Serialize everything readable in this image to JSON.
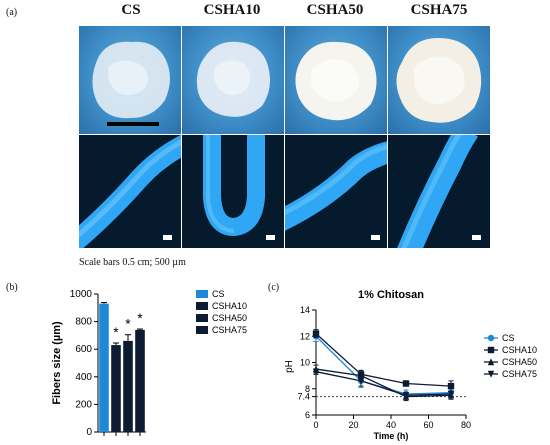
{
  "panel_a": {
    "label": "(a)",
    "columns": [
      "CS",
      "CSHA10",
      "CSHA50",
      "CSHA75"
    ],
    "caption": "Scale bars 0.5 cm; 500 µm"
  },
  "panel_b": {
    "label": "(b)"
  },
  "panel_c": {
    "label": "(c)"
  },
  "colors": {
    "cs": "#1e88d8",
    "dark": "#0d1c33",
    "fiber": "#2fa7f5"
  },
  "chart_data": [
    {
      "type": "bar",
      "categories": [
        "CS",
        "CSHA10",
        "CSHA50",
        "CSHA75"
      ],
      "values": [
        930,
        630,
        660,
        740
      ],
      "errors": [
        8,
        15,
        45,
        6
      ],
      "significance": [
        "",
        "*",
        "*",
        "*"
      ],
      "title": "",
      "xlabel": "",
      "ylabel": "Fibers size (µm)",
      "ylim": [
        0,
        1000
      ],
      "yticks": [
        0,
        200,
        400,
        600,
        800,
        1000
      ],
      "legend": [
        "CS",
        "CSHA10",
        "CSHA50",
        "CSHA75"
      ],
      "legend_position": "right"
    },
    {
      "type": "line",
      "title": "1% Chitosan",
      "xlabel": "Time (h)",
      "ylabel": "pH",
      "xlim": [
        0,
        80
      ],
      "ylim": [
        6,
        14
      ],
      "xticks": [
        0,
        20,
        40,
        60,
        80
      ],
      "yticks": [
        6,
        7.4,
        8,
        10,
        12,
        14
      ],
      "reference_line": 7.4,
      "x": [
        0,
        24,
        48,
        72
      ],
      "series": [
        {
          "name": "CS",
          "marker": "circle",
          "values": [
            12.0,
            8.6,
            7.6,
            7.7
          ],
          "errors": [
            0.4,
            0.5,
            0.3,
            0.3
          ]
        },
        {
          "name": "CSHA10",
          "marker": "square",
          "values": [
            12.2,
            9.1,
            8.4,
            8.2
          ],
          "errors": [
            0.3,
            0.3,
            0.2,
            0.4
          ]
        },
        {
          "name": "CSHA50",
          "marker": "triangle-up",
          "values": [
            9.5,
            9.0,
            7.4,
            7.5
          ],
          "errors": [
            0.3,
            0.4,
            0.3,
            0.3
          ]
        },
        {
          "name": "CSHA75",
          "marker": "triangle-down",
          "values": [
            9.3,
            8.6,
            7.5,
            7.6
          ],
          "errors": [
            0.2,
            0.4,
            0.2,
            0.2
          ]
        }
      ],
      "legend_position": "right"
    }
  ]
}
